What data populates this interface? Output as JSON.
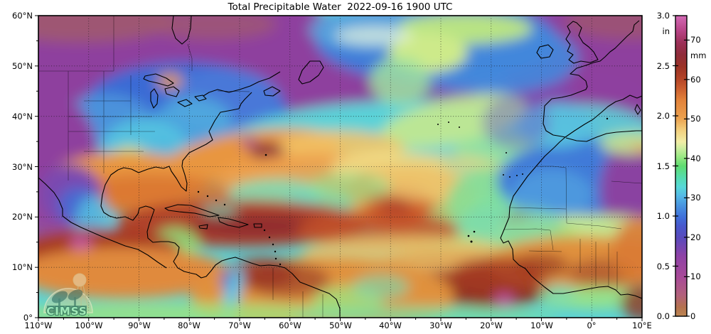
{
  "title": "Total Precipitable Water  2022-09-16 1900 UTC",
  "axes": {
    "lat_ticks": [
      "60°N",
      "50°N",
      "40°N",
      "30°N",
      "20°N",
      "10°N",
      "0°"
    ],
    "lon_ticks": [
      "110°W",
      "100°W",
      "90°W",
      "80°W",
      "70°W",
      "60°W",
      "50°W",
      "40°W",
      "30°W",
      "20°W",
      "10°W",
      "0°",
      "10°E"
    ]
  },
  "colorbar": {
    "unit_left": "in",
    "unit_right": "mm",
    "ticks_in": [
      "3.0",
      "2.5",
      "2.0",
      "1.5",
      "1.0",
      "0.5",
      "0.0"
    ],
    "ticks_mm": [
      "70",
      "60",
      "50",
      "40",
      "30",
      "20",
      "10",
      "0"
    ],
    "gradient_stops": [
      {
        "pct": 0,
        "color": "#bc8552"
      },
      {
        "pct": 3,
        "color": "#b4724e"
      },
      {
        "pct": 7,
        "color": "#b2617c"
      },
      {
        "pct": 13,
        "color": "#a84a98"
      },
      {
        "pct": 20,
        "color": "#8f42a6"
      },
      {
        "pct": 26,
        "color": "#5a4abc"
      },
      {
        "pct": 30,
        "color": "#4858cc"
      },
      {
        "pct": 33,
        "color": "#3f70da"
      },
      {
        "pct": 37,
        "color": "#4a96e0"
      },
      {
        "pct": 40,
        "color": "#55b8e6"
      },
      {
        "pct": 43,
        "color": "#57d8d8"
      },
      {
        "pct": 46,
        "color": "#55dcb0"
      },
      {
        "pct": 50,
        "color": "#5fdc70"
      },
      {
        "pct": 53,
        "color": "#99e883"
      },
      {
        "pct": 56,
        "color": "#cfeda0"
      },
      {
        "pct": 58,
        "color": "#f2eda6"
      },
      {
        "pct": 62,
        "color": "#f3cf7d"
      },
      {
        "pct": 66,
        "color": "#eba04e"
      },
      {
        "pct": 72,
        "color": "#e2823a"
      },
      {
        "pct": 76,
        "color": "#c95c2f"
      },
      {
        "pct": 79,
        "color": "#b44427"
      },
      {
        "pct": 83,
        "color": "#9b3226"
      },
      {
        "pct": 87,
        "color": "#8f2c3a"
      },
      {
        "pct": 91,
        "color": "#9c3058"
      },
      {
        "pct": 95,
        "color": "#b84486"
      },
      {
        "pct": 100,
        "color": "#d36ab5"
      }
    ]
  },
  "logo": {
    "text": "CIMSS"
  },
  "map_palette": {
    "dry_purple": "#8e3f9e",
    "arid_mauve_brown": "#a05a6e",
    "low_tpw_blue": "#3f7ad8",
    "mid_cyan": "#57d8d8",
    "moist_green": "#5fdc70",
    "yellow": "#f2eda6",
    "orange": "#eba04e",
    "red_brown": "#b44427",
    "maroon": "#8f2c3a",
    "extreme_magenta": "#c45bb0",
    "coastline": "#000000"
  }
}
